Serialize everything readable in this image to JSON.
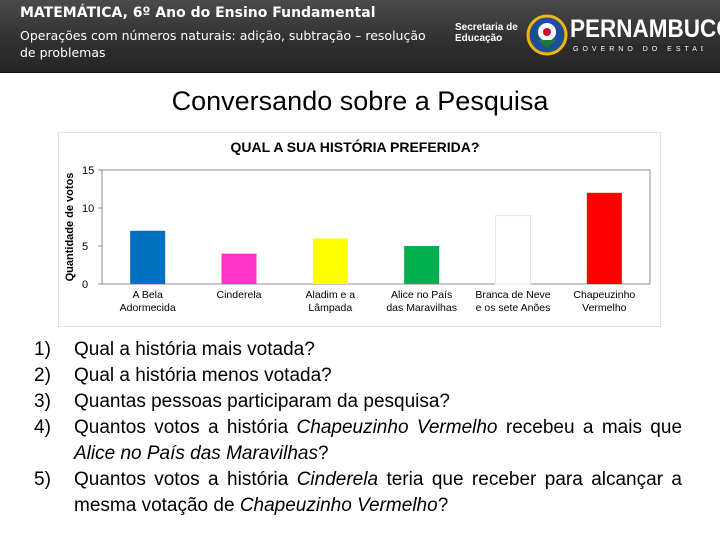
{
  "header": {
    "title": "MATEMÁTICA, 6º Ano do Ensino Fundamental",
    "subtitle": "Operações com números naturais: adição, subtração – resolução de problemas",
    "secretaria_line1": "Secretaria de",
    "secretaria_line2": "Educação",
    "logo_text": "PERNAMBUCO",
    "logo_subtext": "GOVERNO DO ESTADO"
  },
  "slide": {
    "title": "Conversando sobre a Pesquisa"
  },
  "chart_data": {
    "type": "bar",
    "title": "QUAL A SUA HISTÓRIA PREFERIDA?",
    "xlabel": "",
    "ylabel": "Quantidade de votos",
    "ylim": [
      0,
      15
    ],
    "yticks": [
      0,
      5,
      10,
      15
    ],
    "grid": false,
    "categories": [
      [
        "A Bela",
        "Adormecida"
      ],
      [
        "Cinderela"
      ],
      [
        "Aladim e a",
        "Lâmpada"
      ],
      [
        "Alice no País",
        "das Maravilhas"
      ],
      [
        "Branca de Neve",
        "e os sete Anões"
      ],
      [
        "Chapeuzinho",
        "Vermelho"
      ]
    ],
    "values": [
      7,
      4,
      6,
      5,
      9,
      12
    ],
    "colors": [
      "#0070c0",
      "#ff33cc",
      "#ffff00",
      "#00b050",
      "#ffffff",
      "#ff0000"
    ]
  },
  "questions": [
    {
      "num": "1)",
      "parts": [
        {
          "t": "Qual a história mais votada?"
        }
      ]
    },
    {
      "num": "2)",
      "parts": [
        {
          "t": "Qual a história menos votada?"
        }
      ]
    },
    {
      "num": "3)",
      "parts": [
        {
          "t": "Quantas pessoas participaram da pesquisa?"
        }
      ]
    },
    {
      "num": "4)",
      "parts": [
        {
          "t": "Quantos votos a história "
        },
        {
          "t": "Chapeuzinho Vermelho",
          "i": true
        },
        {
          "t": " recebeu a mais que "
        },
        {
          "t": "Alice no País das Maravilhas",
          "i": true
        },
        {
          "t": "?"
        }
      ]
    },
    {
      "num": "5)",
      "parts": [
        {
          "t": "Quantos votos a história "
        },
        {
          "t": "Cinderela",
          "i": true
        },
        {
          "t": " teria que receber para alcançar a mesma votação de "
        },
        {
          "t": "Chapeuzinho Vermelho",
          "i": true
        },
        {
          "t": "?"
        }
      ]
    }
  ]
}
